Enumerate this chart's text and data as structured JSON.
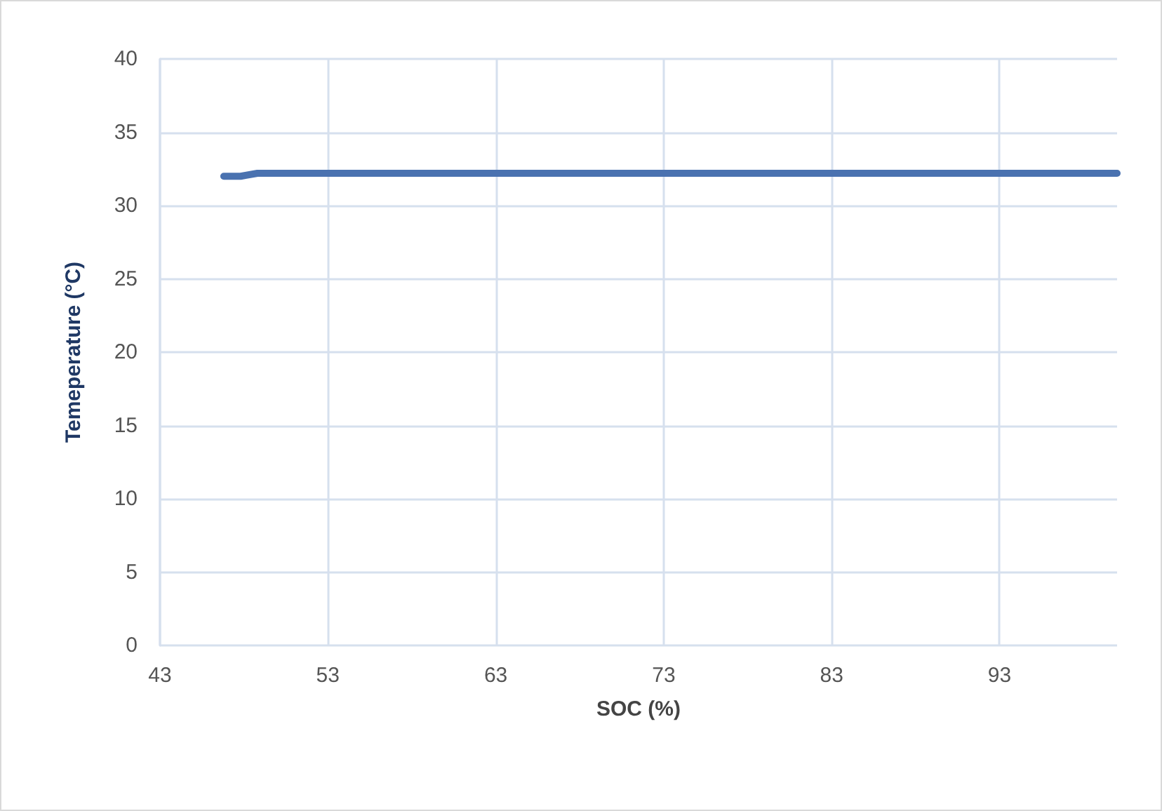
{
  "chart_data": {
    "type": "line",
    "xlabel": "SOC (%)",
    "ylabel": "Temeperature (°C)",
    "x": [
      46.8,
      47.8,
      48.8,
      60,
      80,
      100
    ],
    "series": [
      {
        "color": "#4a72b0",
        "values": [
          32.0,
          32.0,
          32.2,
          32.2,
          32.2,
          32.2
        ]
      }
    ],
    "xlim": [
      43,
      100
    ],
    "xticks": [
      43,
      53,
      63,
      73,
      83,
      93
    ],
    "ylim": [
      0,
      40
    ],
    "yticks": [
      0,
      5,
      10,
      15,
      20,
      25,
      30,
      35,
      40
    ],
    "grid": true,
    "marker": "none",
    "line_style": "solid"
  }
}
